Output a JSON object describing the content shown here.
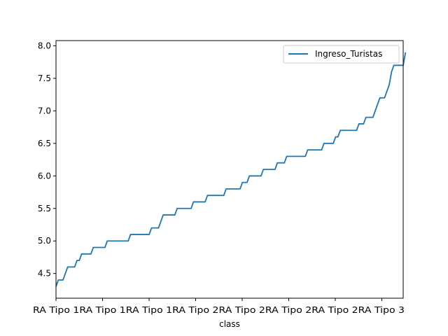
{
  "chart_data": {
    "type": "line",
    "title": "",
    "xlabel": "class",
    "ylabel": "",
    "ylim": [
      4.12,
      8.08
    ],
    "xlim": [
      0,
      149
    ],
    "x_tick_labels": [
      "RA Tipo 1",
      "RA Tipo 1",
      "RA Tipo 1",
      "RA Tipo 2",
      "RA Tipo 2",
      "RA Tipo 2",
      "RA Tipo 2",
      "RA Tipo 3"
    ],
    "x_tick_label_parts": [
      {
        "a": "RA Tipo 1",
        "b": ""
      },
      {
        "a": "RA Tipo 1",
        "b": ""
      },
      {
        "a": "RA Tipo 1",
        "b": ""
      },
      {
        "a": "RA Tipo 2",
        "b": ""
      },
      {
        "a": "RA Tipo 2",
        "b": ""
      },
      {
        "a": "RA Tipo 2",
        "b": ""
      },
      {
        "a": "RA Tipo 2",
        "b": ""
      },
      {
        "a": "RA Tipo 3",
        "b": ""
      }
    ],
    "x_tick_texts": [
      "RA Tipo 1",
      "RA Tipo 1",
      "RA Tipo 1",
      "RA Tipo 2",
      "RA Tipo 2",
      "RA Tipo 2",
      "RA Tipo 2",
      "RA Tipo 3"
    ],
    "y_ticks": [
      4.5,
      5.0,
      5.5,
      6.0,
      6.5,
      7.0,
      7.5,
      8.0
    ],
    "y_tick_labels": [
      "4.5",
      "5.0",
      "5.5",
      "6.0",
      "6.5",
      "7.0",
      "7.5",
      "8.0"
    ],
    "legend": {
      "placement": "top-right"
    },
    "grid": false,
    "series": [
      {
        "name": "Ingreso_Turistas",
        "color": "#1f77b4",
        "values": [
          4.3,
          4.4,
          4.4,
          4.4,
          4.5,
          4.6,
          4.6,
          4.6,
          4.6,
          4.7,
          4.7,
          4.8,
          4.8,
          4.8,
          4.8,
          4.8,
          4.9,
          4.9,
          4.9,
          4.9,
          4.9,
          4.9,
          5.0,
          5.0,
          5.0,
          5.0,
          5.0,
          5.0,
          5.0,
          5.0,
          5.0,
          5.0,
          5.1,
          5.1,
          5.1,
          5.1,
          5.1,
          5.1,
          5.1,
          5.1,
          5.1,
          5.2,
          5.2,
          5.2,
          5.2,
          5.3,
          5.4,
          5.4,
          5.4,
          5.4,
          5.4,
          5.4,
          5.5,
          5.5,
          5.5,
          5.5,
          5.5,
          5.5,
          5.5,
          5.6,
          5.6,
          5.6,
          5.6,
          5.6,
          5.6,
          5.7,
          5.7,
          5.7,
          5.7,
          5.7,
          5.7,
          5.7,
          5.7,
          5.8,
          5.8,
          5.8,
          5.8,
          5.8,
          5.8,
          5.8,
          5.9,
          5.9,
          5.9,
          6.0,
          6.0,
          6.0,
          6.0,
          6.0,
          6.0,
          6.1,
          6.1,
          6.1,
          6.1,
          6.1,
          6.1,
          6.2,
          6.2,
          6.2,
          6.2,
          6.3,
          6.3,
          6.3,
          6.3,
          6.3,
          6.3,
          6.3,
          6.3,
          6.3,
          6.4,
          6.4,
          6.4,
          6.4,
          6.4,
          6.4,
          6.4,
          6.5,
          6.5,
          6.5,
          6.5,
          6.5,
          6.6,
          6.6,
          6.7,
          6.7,
          6.7,
          6.7,
          6.7,
          6.7,
          6.7,
          6.7,
          6.8,
          6.8,
          6.8,
          6.9,
          6.9,
          6.9,
          6.9,
          7.0,
          7.1,
          7.2,
          7.2,
          7.2,
          7.3,
          7.4,
          7.6,
          7.7,
          7.7,
          7.7,
          7.7,
          7.7,
          7.9
        ]
      }
    ]
  }
}
